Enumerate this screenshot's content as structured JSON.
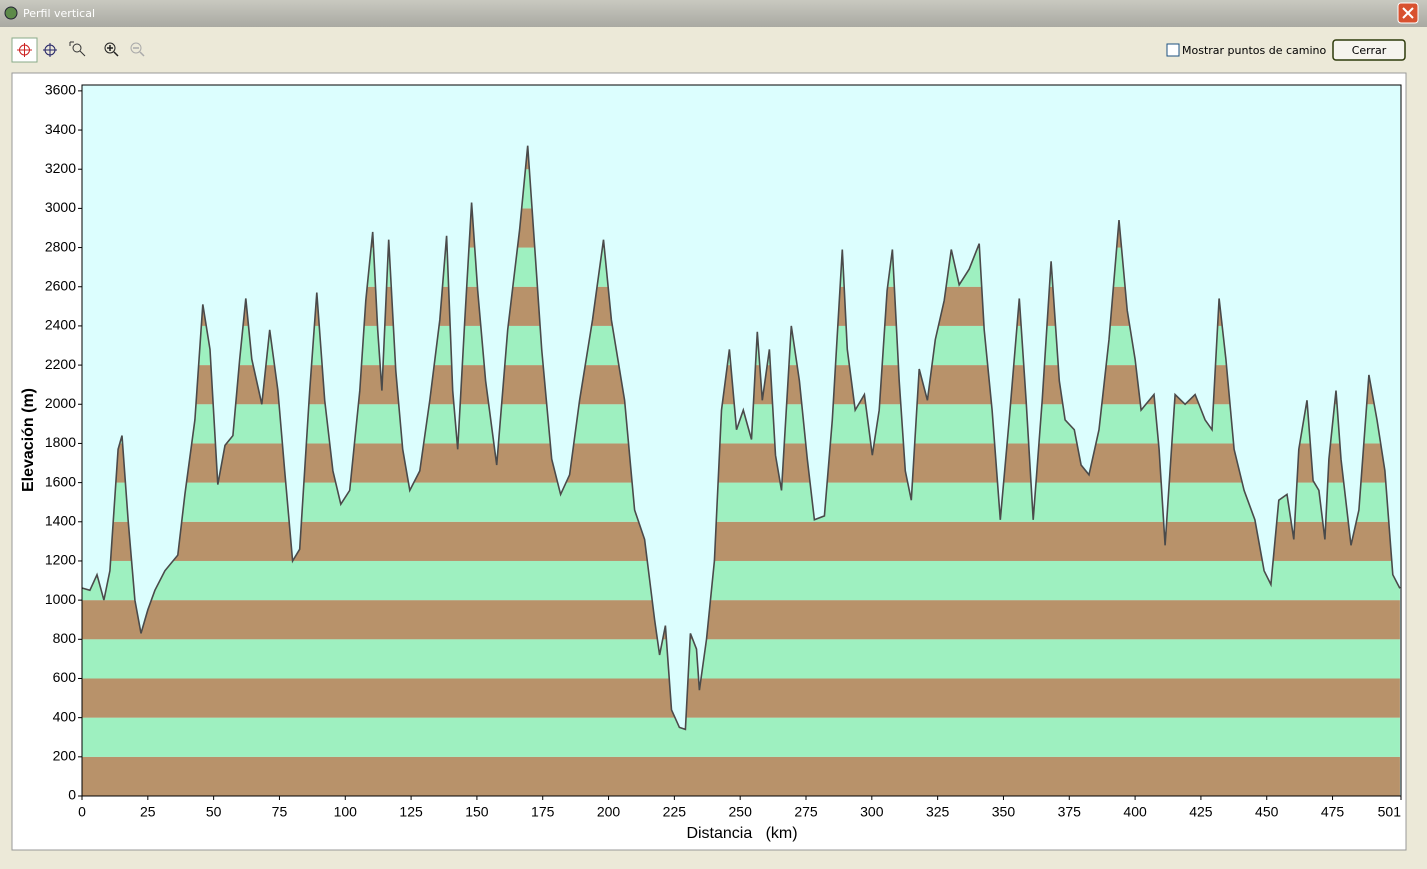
{
  "window": {
    "title": "Perfil vertical"
  },
  "toolbar": {
    "checkbox_label": "Mostrar puntos de camino",
    "button": "Cerrar"
  },
  "chart_data": {
    "type": "area",
    "xlabel": "Distancia   (km)",
    "ylabel": "Elevación (m)",
    "x": [
      0,
      3.0,
      5.7,
      8.3,
      10.6,
      13.7,
      15.2,
      17.5,
      20.1,
      22.4,
      25.0,
      27.7,
      31.5,
      36.4,
      39.1,
      42.9,
      45.9,
      48.6,
      51.6,
      54.3,
      57.3,
      59.9,
      62.2,
      64.5,
      68.3,
      71.3,
      74.4,
      77.0,
      80.0,
      82.7,
      86.5,
      89.2,
      92.2,
      95.3,
      98.3,
      101.7,
      105.5,
      107.8,
      110.4,
      112.3,
      113.9,
      116.5,
      119.2,
      121.8,
      124.5,
      128.3,
      132.1,
      135.9,
      138.5,
      140.8,
      142.7,
      145.4,
      148.0,
      150.3,
      153.3,
      157.5,
      161.7,
      166.2,
      169.3,
      171.9,
      174.6,
      178.4,
      181.8,
      185.2,
      189.0,
      193.9,
      198.1,
      201.1,
      206.1,
      209.9,
      213.7,
      217.5,
      219.4,
      221.6,
      223.9,
      226.9,
      229.2,
      231.1,
      233.4,
      234.5,
      237.2,
      240.2,
      242.9,
      245.9,
      248.6,
      251.2,
      254.3,
      256.5,
      258.4,
      261.1,
      263.4,
      265.7,
      269.4,
      272.5,
      275.5,
      278.2,
      282.0,
      285.0,
      288.8,
      290.7,
      293.7,
      297.2,
      300.2,
      302.8,
      305.8,
      307.8,
      310.4,
      312.7,
      315.0,
      318.0,
      321.1,
      324.1,
      327.5,
      330.2,
      333.2,
      337.0,
      340.8,
      342.7,
      345.7,
      348.8,
      352.2,
      356.0,
      358.6,
      361.3,
      364.7,
      368.1,
      371.2,
      373.4,
      376.9,
      379.5,
      382.5,
      386.3,
      390.1,
      393.9,
      397.0,
      400.0,
      402.3,
      407.2,
      409.1,
      411.4,
      415.2,
      419.0,
      422.8,
      426.6,
      429.2,
      431.9,
      434.5,
      437.6,
      441.4,
      445.5,
      449.0,
      451.6,
      454.6,
      457.7,
      460.3,
      462.2,
      465.3,
      467.6,
      469.8,
      472.1,
      473.6,
      476.3,
      478.2,
      482.0,
      485.0,
      488.8,
      491.9,
      494.9,
      497.9,
      500.6
    ],
    "values": [
      1062,
      1050,
      1130,
      1000,
      1150,
      1770,
      1840,
      1410,
      1000,
      830,
      950,
      1050,
      1150,
      1230,
      1540,
      1920,
      2510,
      2280,
      1590,
      1790,
      1840,
      2230,
      2540,
      2230,
      2000,
      2380,
      2070,
      1660,
      1200,
      1260,
      2070,
      2570,
      2020,
      1660,
      1490,
      1560,
      2070,
      2530,
      2880,
      2380,
      2070,
      2840,
      2170,
      1770,
      1560,
      1660,
      2020,
      2430,
      2860,
      2070,
      1770,
      2430,
      3030,
      2580,
      2120,
      1690,
      2380,
      2890,
      3320,
      2810,
      2280,
      1720,
      1540,
      1640,
      2020,
      2430,
      2840,
      2430,
      2020,
      1460,
      1310,
      900,
      720,
      870,
      440,
      350,
      340,
      830,
      750,
      540,
      800,
      1200,
      1970,
      2280,
      1870,
      1970,
      1820,
      2370,
      2020,
      2280,
      1740,
      1560,
      2400,
      2120,
      1720,
      1410,
      1430,
      1920,
      2790,
      2280,
      1970,
      2050,
      1740,
      1970,
      2580,
      2790,
      2120,
      1660,
      1510,
      2180,
      2020,
      2330,
      2530,
      2790,
      2610,
      2690,
      2820,
      2380,
      1970,
      1410,
      1920,
      2540,
      2020,
      1410,
      2020,
      2730,
      2120,
      1920,
      1870,
      1690,
      1640,
      1870,
      2330,
      2940,
      2480,
      2230,
      1970,
      2050,
      1770,
      1280,
      2050,
      2000,
      2050,
      1920,
      1870,
      2540,
      2230,
      1770,
      1560,
      1410,
      1150,
      1080,
      1510,
      1540,
      1310,
      1770,
      2020,
      1610,
      1560,
      1310,
      1720,
      2070,
      1720,
      1280,
      1460,
      2150,
      1920,
      1660,
      1130,
      1060
    ],
    "xlim": [
      0,
      501
    ],
    "ylim": [
      0,
      3630
    ],
    "xticks": [
      0,
      25,
      50,
      75,
      100,
      125,
      150,
      175,
      200,
      225,
      250,
      275,
      300,
      325,
      350,
      375,
      400,
      425,
      450,
      475,
      501
    ],
    "yticks": [
      0,
      200,
      400,
      600,
      800,
      1000,
      1200,
      1400,
      1600,
      1800,
      2000,
      2200,
      2400,
      2600,
      2800,
      3000,
      3200,
      3400,
      3600
    ],
    "color": "#4a4a4a",
    "background": "#dcfefe",
    "band_colors": [
      "#b8926a",
      "#9ef0c0"
    ]
  }
}
